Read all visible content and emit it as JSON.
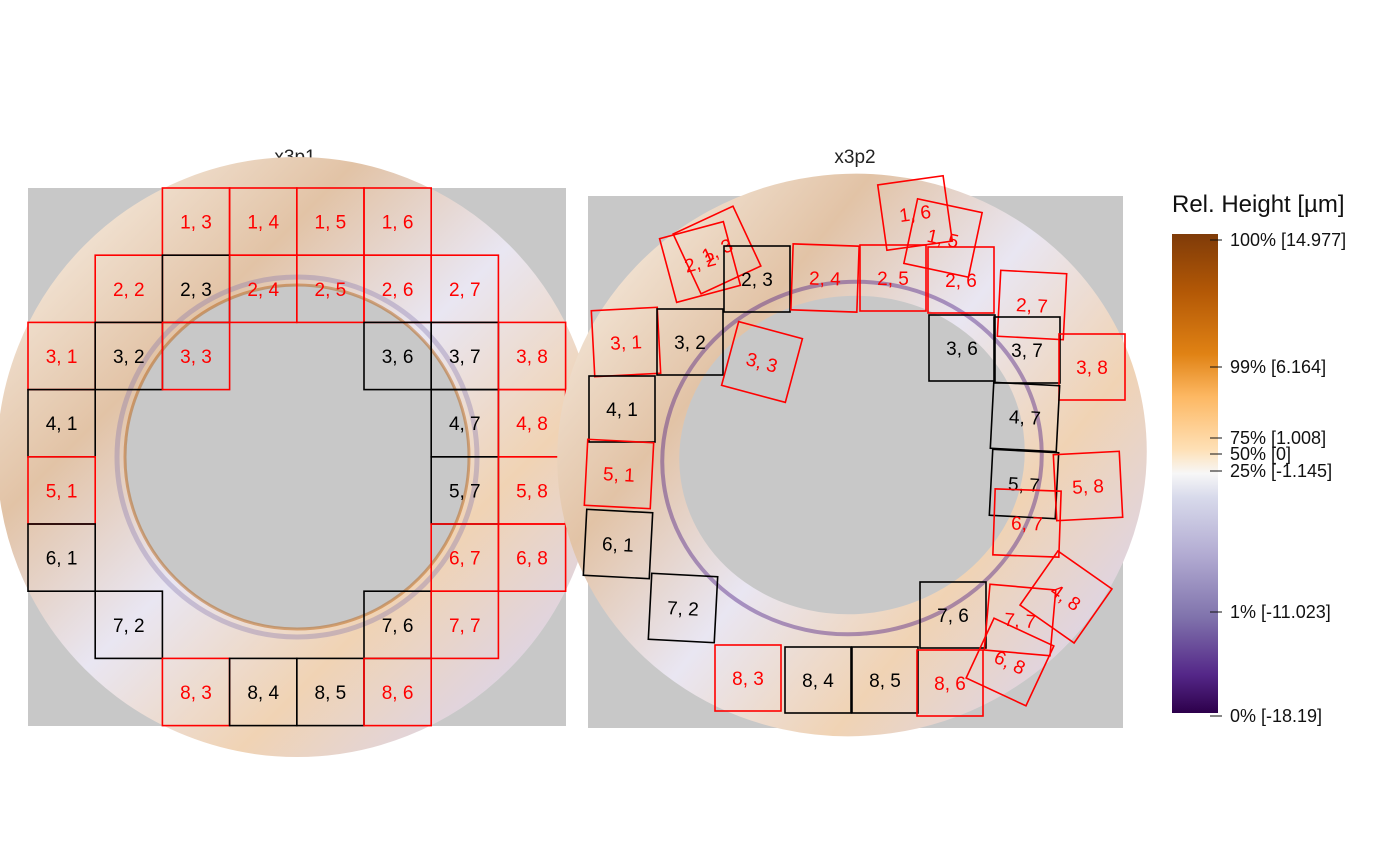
{
  "chart_data": {
    "type": "heatmap",
    "description_kind": "surface-topography-comparison",
    "panels": [
      {
        "title": "x3p1",
        "grid": {
          "rows": 8,
          "cols": 8
        },
        "cells": [
          {
            "label": "1, 3",
            "row": 1,
            "col": 3,
            "highlight": true
          },
          {
            "label": "1, 4",
            "row": 1,
            "col": 4,
            "highlight": true
          },
          {
            "label": "1, 5",
            "row": 1,
            "col": 5,
            "highlight": true
          },
          {
            "label": "1, 6",
            "row": 1,
            "col": 6,
            "highlight": true
          },
          {
            "label": "2, 2",
            "row": 2,
            "col": 2,
            "highlight": true
          },
          {
            "label": "2, 3",
            "row": 2,
            "col": 3,
            "highlight": false
          },
          {
            "label": "2, 4",
            "row": 2,
            "col": 4,
            "highlight": true
          },
          {
            "label": "2, 5",
            "row": 2,
            "col": 5,
            "highlight": true
          },
          {
            "label": "2, 6",
            "row": 2,
            "col": 6,
            "highlight": true
          },
          {
            "label": "2, 7",
            "row": 2,
            "col": 7,
            "highlight": true
          },
          {
            "label": "3, 1",
            "row": 3,
            "col": 1,
            "highlight": true
          },
          {
            "label": "3, 2",
            "row": 3,
            "col": 2,
            "highlight": false
          },
          {
            "label": "3, 3",
            "row": 3,
            "col": 3,
            "highlight": true
          },
          {
            "label": "3, 6",
            "row": 3,
            "col": 6,
            "highlight": false
          },
          {
            "label": "3, 7",
            "row": 3,
            "col": 7,
            "highlight": false
          },
          {
            "label": "3, 8",
            "row": 3,
            "col": 8,
            "highlight": true
          },
          {
            "label": "4, 1",
            "row": 4,
            "col": 1,
            "highlight": false
          },
          {
            "label": "4, 7",
            "row": 4,
            "col": 7,
            "highlight": false
          },
          {
            "label": "4, 8",
            "row": 4,
            "col": 8,
            "highlight": true
          },
          {
            "label": "5, 1",
            "row": 5,
            "col": 1,
            "highlight": true
          },
          {
            "label": "5, 7",
            "row": 5,
            "col": 7,
            "highlight": false
          },
          {
            "label": "5, 8",
            "row": 5,
            "col": 8,
            "highlight": true
          },
          {
            "label": "6, 1",
            "row": 6,
            "col": 1,
            "highlight": false
          },
          {
            "label": "6, 7",
            "row": 6,
            "col": 7,
            "highlight": true
          },
          {
            "label": "6, 8",
            "row": 6,
            "col": 8,
            "highlight": true
          },
          {
            "label": "7, 2",
            "row": 7,
            "col": 2,
            "highlight": false
          },
          {
            "label": "7, 6",
            "row": 7,
            "col": 6,
            "highlight": false
          },
          {
            "label": "7, 7",
            "row": 7,
            "col": 7,
            "highlight": true
          },
          {
            "label": "8, 3",
            "row": 8,
            "col": 3,
            "highlight": true
          },
          {
            "label": "8, 4",
            "row": 8,
            "col": 4,
            "highlight": false
          },
          {
            "label": "8, 5",
            "row": 8,
            "col": 5,
            "highlight": false
          },
          {
            "label": "8, 6",
            "row": 8,
            "col": 6,
            "highlight": true
          }
        ]
      },
      {
        "title": "x3p2",
        "cells": [
          {
            "label": "1, 6",
            "highlight": true,
            "rotation_deg": -8
          },
          {
            "label": "1, 5",
            "highlight": true,
            "rotation_deg": 12
          },
          {
            "label": "2, 2",
            "highlight": true,
            "rotation_deg": -15
          },
          {
            "label": "1, 3",
            "highlight": true,
            "rotation_deg": -25
          },
          {
            "label": "2, 3",
            "highlight": false,
            "rotation_deg": 0
          },
          {
            "label": "2, 4",
            "highlight": true,
            "rotation_deg": 2
          },
          {
            "label": "2, 5",
            "highlight": true,
            "rotation_deg": 0
          },
          {
            "label": "2, 6",
            "highlight": true,
            "rotation_deg": 0
          },
          {
            "label": "2, 7",
            "highlight": true,
            "rotation_deg": 3
          },
          {
            "label": "3, 1",
            "highlight": true,
            "rotation_deg": -3
          },
          {
            "label": "3, 2",
            "highlight": false,
            "rotation_deg": 0
          },
          {
            "label": "3, 3",
            "highlight": true,
            "rotation_deg": 15
          },
          {
            "label": "3, 6",
            "highlight": false,
            "rotation_deg": 0
          },
          {
            "label": "3, 7",
            "highlight": false,
            "rotation_deg": 0
          },
          {
            "label": "3, 8",
            "highlight": true,
            "rotation_deg": 0
          },
          {
            "label": "4, 1",
            "highlight": false,
            "rotation_deg": 0
          },
          {
            "label": "4, 7",
            "highlight": false,
            "rotation_deg": 3
          },
          {
            "label": "5, 1",
            "highlight": true,
            "rotation_deg": 3
          },
          {
            "label": "5, 7",
            "highlight": false,
            "rotation_deg": 3
          },
          {
            "label": "5, 8",
            "highlight": true,
            "rotation_deg": -3
          },
          {
            "label": "6, 7",
            "highlight": true,
            "rotation_deg": 2
          },
          {
            "label": "6, 1",
            "highlight": false,
            "rotation_deg": 3
          },
          {
            "label": "7, 2",
            "highlight": false,
            "rotation_deg": 3
          },
          {
            "label": "7, 6",
            "highlight": false,
            "rotation_deg": 0
          },
          {
            "label": "7, 7",
            "highlight": true,
            "rotation_deg": 5
          },
          {
            "label": "4, 8",
            "highlight": true,
            "rotation_deg": 35
          },
          {
            "label": "6, 8",
            "highlight": true,
            "rotation_deg": 25
          },
          {
            "label": "8, 3",
            "highlight": true,
            "rotation_deg": 0
          },
          {
            "label": "8, 4",
            "highlight": false,
            "rotation_deg": 0
          },
          {
            "label": "8, 5",
            "highlight": false,
            "rotation_deg": 0
          },
          {
            "label": "8, 6",
            "highlight": true,
            "rotation_deg": 0
          }
        ]
      }
    ],
    "colorscale": {
      "title": "Rel. Height [µm]",
      "ticks": [
        {
          "label": "100% [14.977]",
          "quantile": 1.0
        },
        {
          "label": "99% [6.164]",
          "quantile": 0.99
        },
        {
          "label": "75% [1.008]",
          "quantile": 0.75
        },
        {
          "label": "50% [0]",
          "quantile": 0.5
        },
        {
          "label": "25% [-1.145]",
          "quantile": 0.25
        },
        {
          "label": "1% [-11.023]",
          "quantile": 0.01
        },
        {
          "label": "0% [-18.19]",
          "quantile": 0.0
        }
      ],
      "colors": [
        "#2d004b",
        "#542788",
        "#8073ac",
        "#b2abd2",
        "#d8daeb",
        "#f7f7f7",
        "#fee0b6",
        "#fdb863",
        "#e08214",
        "#b35806",
        "#7f3b08"
      ]
    },
    "colors": {
      "background": "#c8c8c8",
      "highlight": "#ff0000",
      "normal": "#000000"
    }
  }
}
